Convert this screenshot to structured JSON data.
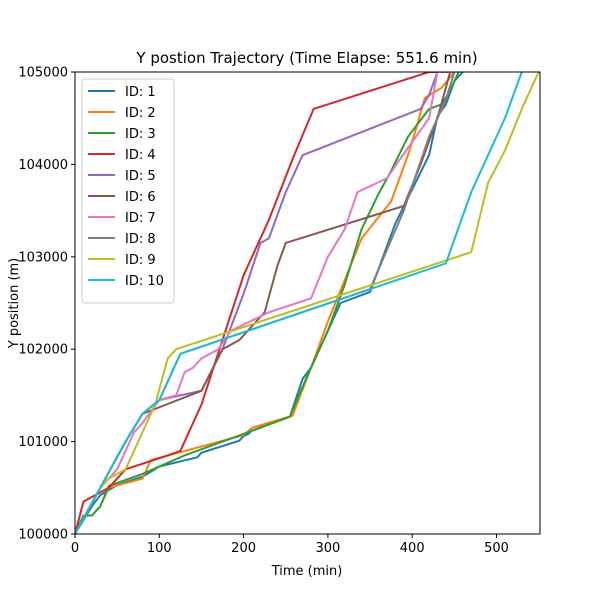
{
  "chart_data": {
    "type": "line",
    "title": "Y postion Trajectory (Time Elapse: 551.6 min)",
    "xlabel": "Time (min)",
    "ylabel": "Y position (m)",
    "xlim": [
      0,
      551.6
    ],
    "ylim": [
      100000,
      105000
    ],
    "xticks": [
      0,
      100,
      200,
      300,
      400,
      500
    ],
    "yticks": [
      100000,
      101000,
      102000,
      103000,
      104000,
      105000
    ],
    "grid": false,
    "legend_position": "upper-left",
    "series": [
      {
        "name": "ID: 1",
        "color": "#1f77b4",
        "points": [
          [
            0,
            100000
          ],
          [
            20,
            100300
          ],
          [
            30,
            100420
          ],
          [
            50,
            100530
          ],
          [
            80,
            100620
          ],
          [
            100,
            100730
          ],
          [
            145,
            100830
          ],
          [
            150,
            100880
          ],
          [
            195,
            101010
          ],
          [
            200,
            101060
          ],
          [
            205,
            101080
          ],
          [
            210,
            101120
          ],
          [
            255,
            101270
          ],
          [
            270,
            101680
          ],
          [
            280,
            101800
          ],
          [
            295,
            102100
          ],
          [
            315,
            102500
          ],
          [
            350,
            102620
          ],
          [
            380,
            103360
          ],
          [
            420,
            104100
          ],
          [
            430,
            104520
          ],
          [
            440,
            104650
          ],
          [
            450,
            104900
          ],
          [
            460,
            105000
          ]
        ]
      },
      {
        "name": "ID: 2",
        "color": "#ff7f0e",
        "points": [
          [
            0,
            100000
          ],
          [
            10,
            100200
          ],
          [
            20,
            100200
          ],
          [
            30,
            100300
          ],
          [
            40,
            100500
          ],
          [
            80,
            100600
          ],
          [
            90,
            100800
          ],
          [
            200,
            101070
          ],
          [
            210,
            101150
          ],
          [
            258,
            101280
          ],
          [
            280,
            101800
          ],
          [
            300,
            102300
          ],
          [
            340,
            103200
          ],
          [
            375,
            103600
          ],
          [
            395,
            104100
          ],
          [
            405,
            104400
          ],
          [
            415,
            104720
          ],
          [
            435,
            104830
          ],
          [
            450,
            105000
          ]
        ]
      },
      {
        "name": "ID: 3",
        "color": "#2ca02c",
        "points": [
          [
            0,
            100000
          ],
          [
            10,
            100200
          ],
          [
            20,
            100200
          ],
          [
            30,
            100300
          ],
          [
            40,
            100520
          ],
          [
            80,
            100650
          ],
          [
            130,
            100850
          ],
          [
            205,
            101100
          ],
          [
            255,
            101270
          ],
          [
            275,
            101700
          ],
          [
            300,
            102200
          ],
          [
            320,
            102700
          ],
          [
            340,
            103300
          ],
          [
            360,
            103680
          ],
          [
            375,
            103930
          ],
          [
            395,
            104300
          ],
          [
            420,
            104600
          ],
          [
            435,
            104650
          ],
          [
            445,
            104800
          ],
          [
            455,
            105000
          ]
        ]
      },
      {
        "name": "ID: 4",
        "color": "#d62728",
        "points": [
          [
            0,
            100000
          ],
          [
            10,
            100350
          ],
          [
            40,
            100500
          ],
          [
            60,
            100700
          ],
          [
            110,
            100850
          ],
          [
            125,
            100900
          ],
          [
            150,
            101400
          ],
          [
            175,
            102100
          ],
          [
            200,
            102800
          ],
          [
            230,
            103400
          ],
          [
            260,
            104100
          ],
          [
            283,
            104600
          ],
          [
            420,
            105000
          ],
          [
            450,
            105000
          ]
        ]
      },
      {
        "name": "ID: 5",
        "color": "#9467bd",
        "points": [
          [
            0,
            100000
          ],
          [
            30,
            100500
          ],
          [
            60,
            101000
          ],
          [
            80,
            101300
          ],
          [
            100,
            101450
          ],
          [
            150,
            101550
          ],
          [
            175,
            102000
          ],
          [
            200,
            102600
          ],
          [
            220,
            103150
          ],
          [
            230,
            103200
          ],
          [
            250,
            103700
          ],
          [
            270,
            104100
          ],
          [
            410,
            104600
          ],
          [
            420,
            104750
          ],
          [
            430,
            105000
          ]
        ]
      },
      {
        "name": "ID: 6",
        "color": "#8c564b",
        "points": [
          [
            0,
            100000
          ],
          [
            30,
            100500
          ],
          [
            60,
            101000
          ],
          [
            80,
            101300
          ],
          [
            150,
            101550
          ],
          [
            175,
            102000
          ],
          [
            195,
            102100
          ],
          [
            225,
            102400
          ],
          [
            240,
            102900
          ],
          [
            250,
            103150
          ],
          [
            390,
            103550
          ],
          [
            410,
            104000
          ],
          [
            430,
            104500
          ],
          [
            445,
            105000
          ]
        ]
      },
      {
        "name": "ID: 7",
        "color": "#e377c2",
        "points": [
          [
            0,
            100000
          ],
          [
            30,
            100500
          ],
          [
            50,
            100700
          ],
          [
            70,
            101100
          ],
          [
            80,
            101200
          ],
          [
            100,
            101450
          ],
          [
            120,
            101500
          ],
          [
            130,
            101750
          ],
          [
            140,
            101800
          ],
          [
            150,
            101900
          ],
          [
            160,
            101950
          ],
          [
            170,
            102000
          ],
          [
            185,
            102200
          ],
          [
            230,
            102400
          ],
          [
            280,
            102550
          ],
          [
            300,
            103000
          ],
          [
            320,
            103300
          ],
          [
            335,
            103700
          ],
          [
            370,
            103850
          ],
          [
            385,
            104050
          ],
          [
            420,
            104500
          ],
          [
            430,
            105000
          ],
          [
            450,
            105000
          ]
        ]
      },
      {
        "name": "ID: 8",
        "color": "#7f7f7f",
        "points": [
          [
            0,
            100000
          ],
          [
            30,
            100500
          ],
          [
            60,
            101000
          ],
          [
            80,
            101300
          ],
          [
            100,
            101450
          ],
          [
            125,
            101950
          ],
          [
            350,
            102650
          ],
          [
            390,
            103500
          ],
          [
            420,
            104300
          ],
          [
            440,
            104700
          ],
          [
            450,
            105000
          ]
        ]
      },
      {
        "name": "ID: 9",
        "color": "#bcbd22",
        "points": [
          [
            0,
            100000
          ],
          [
            30,
            100500
          ],
          [
            40,
            100600
          ],
          [
            60,
            100700
          ],
          [
            95,
            101400
          ],
          [
            110,
            101900
          ],
          [
            120,
            102000
          ],
          [
            470,
            103050
          ],
          [
            490,
            103800
          ],
          [
            510,
            104150
          ],
          [
            530,
            104600
          ],
          [
            550,
            105000
          ]
        ]
      },
      {
        "name": "ID: 10",
        "color": "#17becf",
        "points": [
          [
            0,
            100000
          ],
          [
            30,
            100500
          ],
          [
            60,
            101000
          ],
          [
            80,
            101300
          ],
          [
            100,
            101450
          ],
          [
            125,
            101950
          ],
          [
            440,
            102930
          ],
          [
            470,
            103700
          ],
          [
            485,
            104000
          ],
          [
            510,
            104500
          ],
          [
            530,
            105000
          ]
        ]
      }
    ]
  }
}
